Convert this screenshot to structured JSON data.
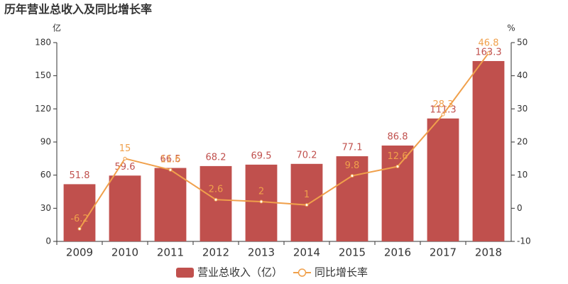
{
  "chart_data": {
    "type": "bar_line",
    "title": "历年营业总收入及同比增长率",
    "y_unit": "亿",
    "y2_unit": "%",
    "categories": [
      "2009",
      "2010",
      "2011",
      "2012",
      "2013",
      "2014",
      "2015",
      "2016",
      "2017",
      "2018"
    ],
    "series": [
      {
        "name": "营业总收入（亿）",
        "type": "bar",
        "color": "#c0504d",
        "axis": "y",
        "values": [
          51.8,
          59.6,
          66.5,
          68.2,
          69.5,
          70.2,
          77.1,
          86.8,
          111.3,
          163.3
        ]
      },
      {
        "name": "同比增长率",
        "type": "line",
        "color": "#f0a04b",
        "axis": "y2",
        "values": [
          -6.2,
          15,
          11.6,
          2.6,
          2,
          1,
          9.8,
          12.6,
          28.3,
          46.8
        ]
      }
    ],
    "ylim": [
      0,
      180
    ],
    "yticks": [
      0,
      30,
      60,
      90,
      120,
      150,
      180
    ],
    "y2lim": [
      -10,
      50
    ],
    "y2ticks": [
      -10,
      0,
      10,
      20,
      30,
      40,
      50
    ],
    "legend": "bottom"
  }
}
